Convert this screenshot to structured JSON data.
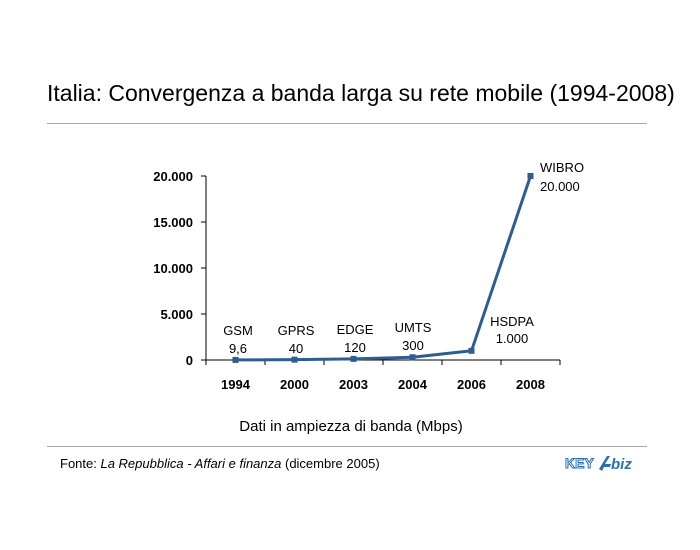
{
  "title": "Italia: Convergenza a banda larga su rete mobile (1994-2008)",
  "footer": {
    "prefix": "Fonte: ",
    "source_italic": "La Repubblica - Affari e finanza",
    "suffix": " (dicembre 2005)"
  },
  "logo": {
    "text_left": "KEY",
    "text_right": "biz"
  },
  "colors": {
    "line": "#2e5e8e",
    "marker": "#2e5e8e",
    "rule": "#a8a8a8",
    "logo": "#2e6fb0"
  },
  "chart_data": {
    "type": "line",
    "categories": [
      "1994",
      "2000",
      "2003",
      "2004",
      "2006",
      "2008"
    ],
    "series": [
      {
        "values": [
          9.6,
          40,
          120,
          300,
          1000,
          20000
        ]
      }
    ],
    "point_labels": [
      {
        "tech": "GSM",
        "value": "9,6"
      },
      {
        "tech": "GPRS",
        "value": "40"
      },
      {
        "tech": "EDGE",
        "value": "120"
      },
      {
        "tech": "UMTS",
        "value": "300"
      },
      {
        "tech": "HSDPA",
        "value": "1.000"
      },
      {
        "tech": "WIBRO",
        "value": "20.000"
      }
    ],
    "yticks": [
      {
        "value": 0,
        "label": "0"
      },
      {
        "value": 5000,
        "label": "5.000"
      },
      {
        "value": 10000,
        "label": "10.000"
      },
      {
        "value": 15000,
        "label": "15.000"
      },
      {
        "value": 20000,
        "label": "20.000"
      }
    ],
    "ylim": [
      0,
      20000
    ],
    "xlabel": "Dati in ampiezza di banda (Mbps)",
    "ylabel": "",
    "grid": false
  }
}
